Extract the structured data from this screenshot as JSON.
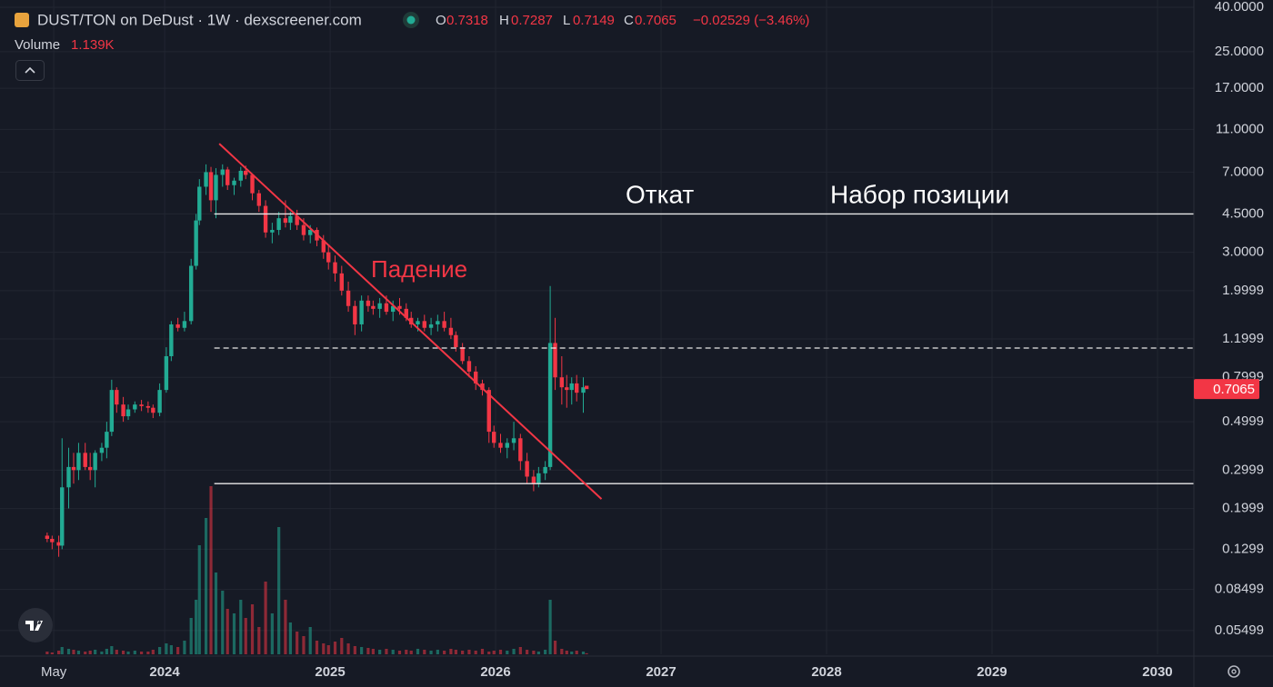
{
  "header": {
    "pair": "DUST/TON on DeDust · 1W · dexscreener.com",
    "ohlc_labels": [
      "O",
      "H",
      "L",
      "C"
    ],
    "change": "−0.02529 (−3.46%)",
    "volume_label": "Volume",
    "volume_value": "1.139K"
  },
  "chart_data": {
    "type": "candlestick",
    "x": [
      2023.29,
      2023.32,
      2023.36,
      2023.38,
      2023.42,
      2023.45,
      2023.48,
      2023.52,
      2023.55,
      2023.58,
      2023.62,
      2023.65,
      2023.68,
      2023.71,
      2023.75,
      2023.78,
      2023.82,
      2023.86,
      2023.9,
      2023.93,
      2023.97,
      2024.01,
      2024.04,
      2024.08,
      2024.12,
      2024.16,
      2024.19,
      2024.21,
      2024.25,
      2024.28,
      2024.31,
      2024.35,
      2024.38,
      2024.42,
      2024.46,
      2024.49,
      2024.53,
      2024.57,
      2024.61,
      2024.65,
      2024.69,
      2024.73,
      2024.76,
      2024.8,
      2024.84,
      2024.88,
      2024.92,
      2024.96,
      2024.99,
      2025.03,
      2025.07,
      2025.11,
      2025.15,
      2025.19,
      2025.23,
      2025.26,
      2025.3,
      2025.34,
      2025.38,
      2025.42,
      2025.46,
      2025.49,
      2025.53,
      2025.57,
      2025.61,
      2025.65,
      2025.69,
      2025.73,
      2025.76,
      2025.8,
      2025.84,
      2025.88,
      2025.92,
      2025.96,
      2025.99,
      2026.03,
      2026.07,
      2026.11,
      2026.15,
      2026.19,
      2026.23,
      2026.26,
      2026.3,
      2026.33,
      2026.36,
      2026.4,
      2026.43,
      2026.46,
      2026.49,
      2026.53,
      2026.55
    ],
    "open": [
      0.15,
      0.145,
      0.14,
      0.135,
      0.25,
      0.31,
      0.3,
      0.36,
      0.31,
      0.3,
      0.36,
      0.38,
      0.45,
      0.7,
      0.6,
      0.53,
      0.57,
      0.6,
      0.59,
      0.58,
      0.55,
      0.7,
      1.0,
      1.4,
      1.35,
      1.45,
      2.6,
      4.2,
      6,
      7,
      5.2,
      6.8,
      7.2,
      6.1,
      6.4,
      7.1,
      6.8,
      5.6,
      4.9,
      3.7,
      3.8,
      4.3,
      4.1,
      4.4,
      4.0,
      3.6,
      3.8,
      3.4,
      3.0,
      2.7,
      2.4,
      2.0,
      1.7,
      1.4,
      1.8,
      1.7,
      1.65,
      1.75,
      1.6,
      1.7,
      1.65,
      1.5,
      1.4,
      1.45,
      1.35,
      1.4,
      1.45,
      1.35,
      1.25,
      1.1,
      0.95,
      0.85,
      0.75,
      0.7,
      0.45,
      0.4,
      0.38,
      0.4,
      0.42,
      0.33,
      0.28,
      0.26,
      0.29,
      0.31,
      1.15,
      0.8,
      0.72,
      0.7,
      0.75,
      0.68,
      0.7318
    ],
    "high": [
      0.155,
      0.15,
      0.15,
      0.42,
      0.38,
      0.36,
      0.4,
      0.4,
      0.36,
      0.37,
      0.4,
      0.5,
      0.78,
      0.72,
      0.65,
      0.6,
      0.62,
      0.63,
      0.62,
      0.6,
      0.75,
      1.1,
      1.45,
      1.5,
      1.6,
      2.8,
      4.5,
      6.5,
      7.6,
      7.4,
      7.3,
      7.6,
      7.4,
      6.6,
      7.4,
      7.5,
      6.9,
      5.8,
      5.2,
      4.1,
      4.6,
      5.2,
      4.6,
      4.7,
      4.3,
      4.0,
      3.9,
      3.6,
      3.2,
      2.9,
      2.6,
      2.2,
      1.8,
      1.9,
      1.9,
      1.8,
      1.85,
      1.9,
      1.8,
      1.85,
      1.75,
      1.6,
      1.5,
      1.55,
      1.5,
      1.55,
      1.6,
      1.5,
      1.3,
      1.15,
      1.0,
      0.9,
      0.78,
      0.72,
      0.48,
      0.44,
      0.42,
      0.5,
      0.44,
      0.36,
      0.3,
      0.31,
      0.33,
      2.1,
      1.5,
      1.0,
      0.82,
      0.8,
      0.82,
      0.8,
      0.7287
    ],
    "low": [
      0.14,
      0.13,
      0.12,
      0.13,
      0.2,
      0.26,
      0.27,
      0.3,
      0.27,
      0.25,
      0.33,
      0.34,
      0.43,
      0.55,
      0.5,
      0.51,
      0.55,
      0.56,
      0.55,
      0.52,
      0.53,
      0.68,
      0.95,
      1.3,
      1.3,
      1.4,
      2.5,
      4,
      5.5,
      4.6,
      4.3,
      6,
      5.8,
      5.5,
      6,
      6.5,
      5.2,
      4.6,
      3.5,
      3.3,
      3.6,
      3.9,
      3.8,
      3.8,
      3.4,
      3.3,
      3.2,
      2.8,
      2.5,
      2.2,
      1.9,
      1.6,
      1.25,
      1.3,
      1.6,
      1.55,
      1.5,
      1.55,
      1.45,
      1.55,
      1.45,
      1.35,
      1.3,
      1.3,
      1.25,
      1.3,
      1.3,
      1.2,
      1.05,
      0.92,
      0.8,
      0.7,
      0.66,
      0.4,
      0.38,
      0.36,
      0.34,
      0.37,
      0.3,
      0.26,
      0.24,
      0.25,
      0.27,
      0.3,
      0.7,
      0.6,
      0.58,
      0.6,
      0.62,
      0.55,
      0.7149
    ],
    "close": [
      0.145,
      0.14,
      0.135,
      0.25,
      0.31,
      0.3,
      0.36,
      0.31,
      0.3,
      0.36,
      0.38,
      0.45,
      0.7,
      0.6,
      0.53,
      0.57,
      0.6,
      0.59,
      0.58,
      0.55,
      0.7,
      1.0,
      1.4,
      1.35,
      1.45,
      2.6,
      4.2,
      6,
      7,
      5.2,
      6.8,
      7.2,
      6.1,
      6.4,
      7.1,
      6.8,
      5.6,
      4.9,
      3.7,
      3.8,
      4.3,
      4.1,
      4.4,
      4.0,
      3.6,
      3.8,
      3.4,
      3.0,
      2.7,
      2.4,
      2.0,
      1.7,
      1.4,
      1.8,
      1.7,
      1.65,
      1.75,
      1.6,
      1.7,
      1.65,
      1.5,
      1.4,
      1.45,
      1.35,
      1.4,
      1.45,
      1.35,
      1.25,
      1.1,
      0.95,
      0.85,
      0.75,
      0.7,
      0.45,
      0.4,
      0.38,
      0.4,
      0.42,
      0.33,
      0.28,
      0.26,
      0.29,
      0.31,
      1.15,
      0.8,
      0.72,
      0.7,
      0.75,
      0.68,
      0.72,
      0.7065
    ],
    "volume": [
      3,
      2,
      4,
      8,
      6,
      5,
      4,
      3,
      4,
      5,
      3,
      6,
      9,
      5,
      4,
      3,
      4,
      3,
      3,
      5,
      8,
      12,
      10,
      8,
      15,
      40,
      60,
      120,
      150,
      185,
      90,
      70,
      50,
      45,
      60,
      40,
      55,
      30,
      80,
      45,
      140,
      60,
      35,
      25,
      20,
      30,
      15,
      12,
      10,
      14,
      18,
      12,
      9,
      8,
      7,
      6,
      5,
      6,
      5,
      4,
      5,
      4,
      6,
      5,
      4,
      5,
      4,
      6,
      5,
      4,
      5,
      4,
      6,
      3,
      4,
      5,
      4,
      6,
      8,
      5,
      4,
      3,
      5,
      60,
      15,
      6,
      4,
      3,
      4,
      3,
      1.139
    ],
    "colors": {
      "up": "#22ab94",
      "down": "#f23645",
      "level": "#e8e8e8",
      "trendline": "#f23645"
    },
    "xlim": [
      2023.005,
      2030.22
    ],
    "xticks": [
      {
        "value": 2023.33,
        "label": "May"
      },
      2024,
      2025,
      2026,
      2027,
      2028,
      2029,
      2030
    ],
    "ylim": [
      0.0428,
      43.2
    ],
    "log_y": true,
    "grid": true,
    "yticks": [
      {
        "value": 40,
        "label": "40.0000"
      },
      {
        "value": 25,
        "label": "25.0000"
      },
      {
        "value": 17,
        "label": "17.0000"
      },
      {
        "value": 11,
        "label": "11.0000"
      },
      {
        "value": 7,
        "label": "7.0000"
      },
      {
        "value": 4.5,
        "label": "4.5000"
      },
      {
        "value": 3,
        "label": "3.0000"
      },
      1.9999,
      1.1999,
      0.7999,
      0.4999,
      0.2999,
      0.1999,
      0.1299,
      0.08499,
      0.05499
    ],
    "volume_ylim": [
      0,
      200
    ],
    "levels_start": 2024.3,
    "levels": [
      {
        "value": 4.5,
        "style": "solid"
      },
      {
        "value": 1.09,
        "style": "dashed"
      },
      {
        "value": 0.26,
        "style": "solid"
      }
    ],
    "trendline": {
      "x": [
        2024.33,
        2026.64
      ],
      "y": [
        9.46,
        0.221
      ]
    },
    "annotations": [
      "Откат",
      "Набор позиции",
      "Падение"
    ]
  }
}
